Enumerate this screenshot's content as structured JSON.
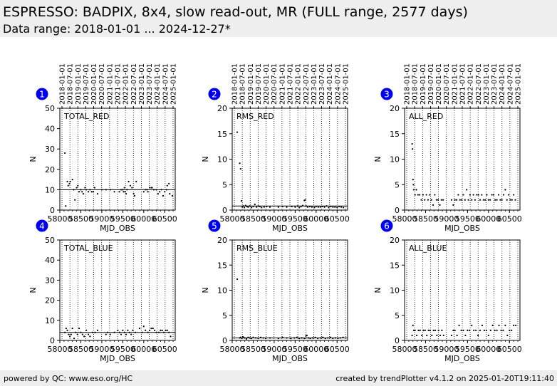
{
  "header": {
    "title": "ESPRESSO: BADPIX, 8x4, slow read-out, MR (FULL range, 2577 days)",
    "subtitle": "Data range: 2018-01-01 ... 2024-12-27*"
  },
  "footer": {
    "left": "powered by QC: www.eso.org/HC",
    "right": "created by trendPlotter v4.1.2 on 2025-01-20T19:11:40"
  },
  "colors": {
    "marker": "#0000ee",
    "background_bar": "#eeeeee",
    "points": "#000000"
  },
  "chart_data": [
    {
      "type": "scatter",
      "id": "1",
      "title": "TOTAL_RED",
      "xlabel": "MJD_OBS",
      "ylabel": "N",
      "xlim": [
        58000,
        60750
      ],
      "ylim": [
        0,
        50
      ],
      "yticks": [
        0,
        10,
        20,
        30,
        40,
        50
      ],
      "xticks": [
        58000,
        58500,
        59000,
        59500,
        60000,
        60500
      ],
      "top_ticks": [
        "2018-01-01",
        "2018-07-01",
        "2019-01-01",
        "2019-07-01",
        "2020-01-01",
        "2020-07-01",
        "2021-01-01",
        "2021-07-01",
        "2022-01-01",
        "2022-07-01",
        "2023-01-01",
        "2023-07-01",
        "2024-01-01",
        "2024-07-01",
        "2025-01-01"
      ],
      "reference_line": 10,
      "x": [
        58120,
        58140,
        58180,
        58200,
        58230,
        58250,
        58300,
        58330,
        58360,
        58400,
        58430,
        58460,
        58500,
        58530,
        58560,
        58600,
        58630,
        58680,
        58720,
        58760,
        58800,
        58830,
        58900,
        59000,
        59100,
        59200,
        59300,
        59420,
        59460,
        59500,
        59520,
        59540,
        59560,
        59580,
        59600,
        59640,
        59680,
        59720,
        59760,
        59780,
        59820,
        60000,
        60040,
        60080,
        60100,
        60140,
        60180,
        60200,
        60240,
        60300,
        60340,
        60380,
        60420,
        60460,
        60500,
        60540,
        60560,
        60600,
        60620,
        60680
      ],
      "y": [
        28,
        2,
        14,
        12,
        13,
        14,
        15,
        10,
        5,
        11,
        12,
        9,
        10,
        9,
        8,
        11,
        10,
        9,
        10,
        9,
        9,
        11,
        8,
        10,
        10,
        10,
        9,
        9,
        10,
        10,
        9,
        11,
        9,
        8,
        10,
        14,
        12,
        11,
        8,
        7,
        14,
        9,
        10,
        10,
        9,
        11,
        11,
        11,
        10,
        10,
        8,
        9,
        10,
        7,
        9,
        10,
        12,
        13,
        8,
        7
      ]
    },
    {
      "type": "scatter",
      "id": "2",
      "title": "RMS_RED",
      "xlabel": "MJD_OBS",
      "ylabel": "N",
      "xlim": [
        58000,
        60750
      ],
      "ylim": [
        0,
        20
      ],
      "yticks": [
        0,
        5,
        10,
        15,
        20
      ],
      "xticks": [
        58000,
        58500,
        59000,
        59500,
        60000,
        60500
      ],
      "top_ticks": [
        "2018-01-01",
        "2018-07-01",
        "2019-01-01",
        "2019-07-01",
        "2020-01-01",
        "2020-07-01",
        "2021-01-01",
        "2021-07-01",
        "2022-01-01",
        "2022-07-01",
        "2023-01-01",
        "2023-07-01",
        "2024-01-01",
        "2024-07-01",
        "2025-01-01"
      ],
      "reference_line": 0.8,
      "x": [
        58120,
        58180,
        58200,
        58220,
        58240,
        58260,
        58290,
        58320,
        58350,
        58380,
        58420,
        58460,
        58500,
        58540,
        58580,
        58620,
        58660,
        58700,
        58760,
        58820,
        58900,
        59100,
        59200,
        59300,
        59420,
        59500,
        59560,
        59600,
        59640,
        59680,
        59720,
        59740,
        59760,
        59800,
        59850,
        59900,
        59960,
        60000,
        60050,
        60100,
        60150,
        60200,
        60250,
        60300,
        60350,
        60400,
        60450,
        60500,
        60550,
        60600,
        60650
      ],
      "y": [
        15.3,
        9.2,
        8.1,
        1.8,
        0.6,
        0.8,
        0.5,
        0.9,
        0.7,
        0.6,
        0.8,
        0.5,
        0.7,
        1.1,
        0.6,
        0.8,
        0.7,
        0.5,
        0.6,
        0.7,
        0.6,
        0.6,
        0.7,
        0.6,
        0.7,
        0.6,
        0.8,
        0.5,
        0.7,
        0.9,
        1.9,
        2.0,
        0.8,
        0.6,
        0.7,
        0.6,
        0.5,
        0.7,
        0.6,
        0.6,
        0.7,
        0.6,
        0.8,
        0.5,
        0.7,
        0.6,
        0.6,
        0.5,
        0.7,
        0.6,
        0.5
      ]
    },
    {
      "type": "scatter",
      "id": "3",
      "title": "ALL_RED",
      "xlabel": "MJD_OBS",
      "ylabel": "N",
      "xlim": [
        58000,
        60750
      ],
      "ylim": [
        0,
        20
      ],
      "yticks": [
        0,
        5,
        10,
        15,
        20
      ],
      "xticks": [
        58000,
        58500,
        59000,
        59500,
        60000,
        60500
      ],
      "top_ticks": [
        "2018-01-01",
        "2018-07-01",
        "2019-01-01",
        "2019-07-01",
        "2020-01-01",
        "2020-07-01",
        "2021-01-01",
        "2021-07-01",
        "2022-01-01",
        "2022-07-01",
        "2023-01-01",
        "2023-07-01",
        "2024-01-01",
        "2024-07-01",
        "2025-01-01"
      ],
      "x": [
        58180,
        58190,
        58200,
        58210,
        58220,
        58250,
        58280,
        58320,
        58360,
        58400,
        58440,
        58480,
        58520,
        58560,
        58600,
        58640,
        58680,
        58720,
        58760,
        58800,
        58840,
        58880,
        58920,
        59120,
        59160,
        59200,
        59240,
        59280,
        59320,
        59360,
        59400,
        59440,
        59480,
        59520,
        59560,
        59600,
        59640,
        59680,
        59720,
        59760,
        59800,
        59840,
        59880,
        59920,
        59960,
        60000,
        60040,
        60080,
        60120,
        60160,
        60200,
        60240,
        60280,
        60320,
        60360,
        60400,
        60440,
        60480,
        60520,
        60560,
        60600,
        60640
      ],
      "y": [
        13,
        12,
        6,
        5,
        4,
        3,
        4,
        3,
        3,
        2,
        3,
        2,
        3,
        2,
        3,
        2,
        1,
        3,
        2,
        2,
        1,
        2,
        2,
        2,
        1,
        2,
        2,
        3,
        2,
        2,
        3,
        2,
        4,
        2,
        3,
        2,
        3,
        2,
        3,
        3,
        2,
        3,
        2,
        2,
        3,
        2,
        2,
        3,
        3,
        2,
        2,
        3,
        2,
        2,
        3,
        4,
        2,
        3,
        2,
        2,
        3,
        2
      ]
    },
    {
      "type": "scatter",
      "id": "4",
      "title": "TOTAL_BLUE",
      "xlabel": "MJD_OBS",
      "ylabel": "N",
      "xlim": [
        58000,
        60750
      ],
      "ylim": [
        0,
        50
      ],
      "yticks": [
        0,
        10,
        20,
        30,
        40,
        50
      ],
      "xticks": [
        58000,
        58500,
        59000,
        59500,
        60000,
        60500
      ],
      "top_ticks": [],
      "reference_line": 4,
      "x": [
        58120,
        58150,
        58180,
        58210,
        58240,
        58270,
        58300,
        58340,
        58380,
        58420,
        58460,
        58500,
        58540,
        58580,
        58630,
        58680,
        58720,
        58780,
        58840,
        58900,
        59100,
        59140,
        59200,
        59300,
        59380,
        59420,
        59460,
        59500,
        59540,
        59580,
        59620,
        59660,
        59700,
        59740,
        59800,
        59900,
        59960,
        60000,
        60040,
        60100,
        60140,
        60180,
        60220,
        60260,
        60300,
        60360,
        60400,
        60440,
        60480,
        60520,
        60560,
        60600,
        60640
      ],
      "y": [
        4,
        6,
        5,
        3,
        2,
        3,
        6,
        1,
        4,
        3,
        6,
        4,
        3,
        2,
        5,
        3,
        2,
        4,
        4,
        5,
        3,
        4,
        3,
        4,
        5,
        4,
        3,
        5,
        4,
        3,
        5,
        4,
        3,
        5,
        4,
        6,
        4,
        7,
        5,
        4,
        5,
        6,
        6,
        5,
        4,
        4,
        5,
        5,
        4,
        5,
        5,
        4,
        2
      ]
    },
    {
      "type": "scatter",
      "id": "5",
      "title": "RMS_BLUE",
      "xlabel": "MJD_OBS",
      "ylabel": "N",
      "xlim": [
        58000,
        60750
      ],
      "ylim": [
        0,
        20
      ],
      "yticks": [
        0,
        5,
        10,
        15,
        20
      ],
      "xticks": [
        58000,
        58500,
        59000,
        59500,
        60000,
        60500
      ],
      "top_ticks": [],
      "reference_line": 0.5,
      "x": [
        58120,
        58180,
        58200,
        58230,
        58260,
        58300,
        58340,
        58380,
        58420,
        58460,
        58500,
        58560,
        58620,
        58680,
        58740,
        58800,
        58900,
        59100,
        59200,
        59300,
        59400,
        59480,
        59540,
        59600,
        59660,
        59720,
        59760,
        59780,
        59820,
        59860,
        59920,
        59980,
        60040,
        60100,
        60160,
        60220,
        60280,
        60340,
        60400,
        60460,
        60520,
        60580,
        60640
      ],
      "y": [
        12.2,
        0.5,
        0.6,
        0.4,
        0.7,
        0.5,
        0.3,
        0.6,
        0.5,
        0.4,
        0.6,
        0.5,
        0.4,
        0.6,
        0.5,
        0.4,
        0.5,
        0.4,
        0.6,
        0.5,
        0.4,
        0.5,
        0.6,
        0.4,
        0.5,
        0.4,
        0.9,
        1.0,
        0.5,
        0.4,
        0.5,
        0.6,
        0.4,
        0.5,
        0.6,
        0.4,
        0.5,
        0.6,
        0.4,
        0.5,
        0.4,
        0.5,
        0.6
      ]
    },
    {
      "type": "scatter",
      "id": "6",
      "title": "ALL_BLUE",
      "xlabel": "MJD_OBS",
      "ylabel": "N",
      "xlim": [
        58000,
        60750
      ],
      "ylim": [
        0,
        20
      ],
      "yticks": [
        0,
        5,
        10,
        15,
        20
      ],
      "xticks": [
        58000,
        58500,
        59000,
        59500,
        60000,
        60500
      ],
      "top_ticks": [],
      "x": [
        58180,
        58200,
        58220,
        58250,
        58290,
        58330,
        58370,
        58410,
        58450,
        58490,
        58530,
        58570,
        58610,
        58650,
        58690,
        58730,
        58770,
        58810,
        58850,
        58890,
        58930,
        59120,
        59160,
        59200,
        59250,
        59300,
        59350,
        59400,
        59450,
        59500,
        59550,
        59600,
        59650,
        59700,
        59750,
        59800,
        59850,
        59900,
        59950,
        60000,
        60050,
        60100,
        60150,
        60200,
        60250,
        60300,
        60350,
        60400,
        60450,
        60500,
        60550,
        60600,
        60650
      ],
      "y": [
        1,
        3,
        2,
        2,
        1,
        2,
        2,
        1,
        2,
        2,
        1,
        2,
        2,
        1,
        2,
        2,
        1,
        2,
        1,
        2,
        1,
        1,
        2,
        2,
        1,
        3,
        2,
        2,
        1,
        2,
        2,
        3,
        2,
        2,
        1,
        2,
        3,
        2,
        2,
        1,
        2,
        3,
        2,
        2,
        3,
        2,
        2,
        3,
        1,
        2,
        2,
        3,
        3
      ]
    }
  ]
}
